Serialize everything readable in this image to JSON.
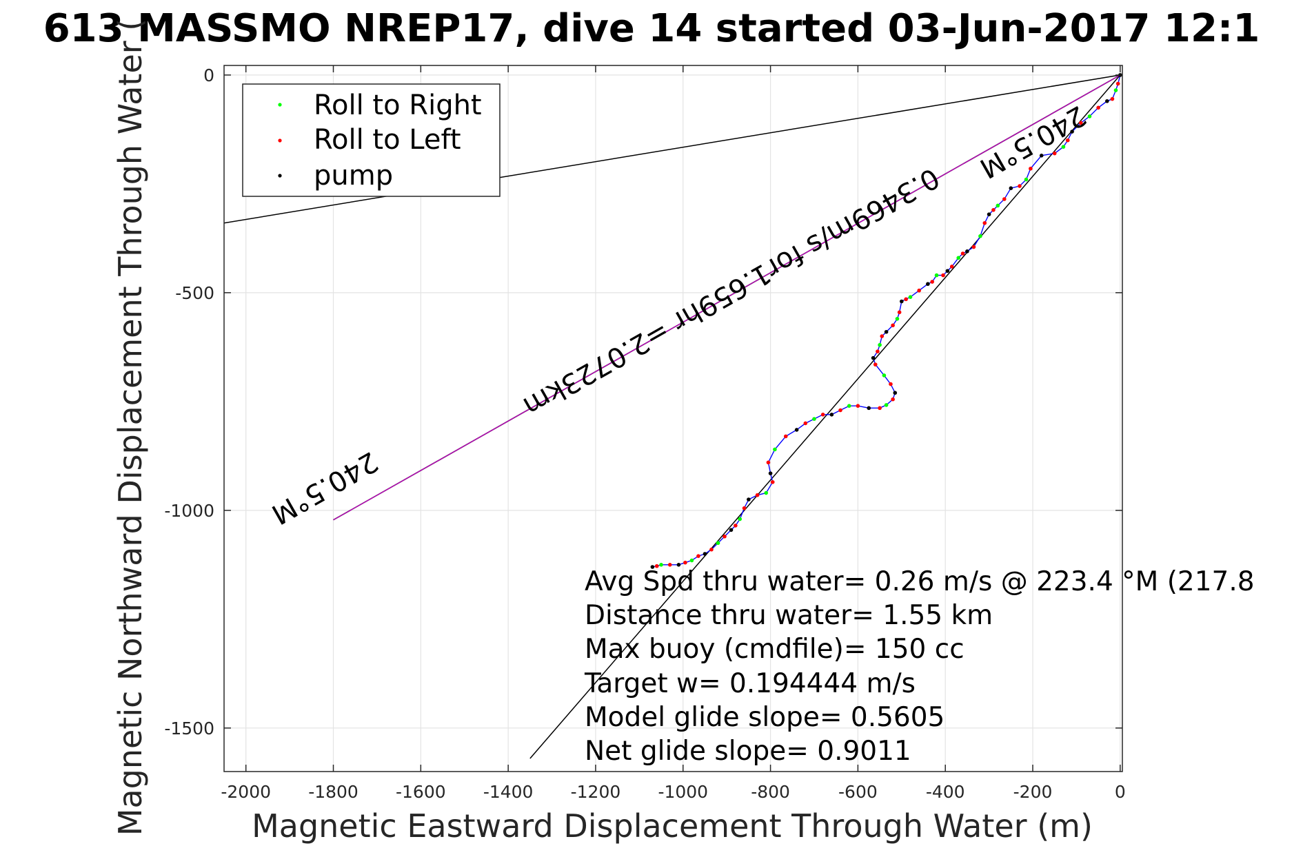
{
  "chart_data": {
    "type": "line",
    "title": "613 MASSMO NREP17, dive 14 started 03-Jun-2017 12:1",
    "xlabel": "Magnetic Eastward Displacement Through Water (m)",
    "ylabel": "Magnetic Northward Displacement Through Water (",
    "xlim": [
      -2050,
      5
    ],
    "ylim": [
      -1600,
      22
    ],
    "xticks": [
      -2000,
      -1800,
      -1600,
      -1400,
      -1200,
      -1000,
      -800,
      -600,
      -400,
      -200,
      0
    ],
    "xtick_labels": [
      "-2000",
      "-1800",
      "-1600",
      "-1400",
      "-1200",
      "-1000",
      "-800",
      "-600",
      "-400",
      "-200",
      "0"
    ],
    "yticks": [
      0,
      -500,
      -1000,
      -1500
    ],
    "ytick_labels": [
      "0",
      "-500",
      "-1000",
      "-1500"
    ],
    "grid": true,
    "legend_position": "top-left",
    "legend": [
      {
        "label": "Roll to Right",
        "color": "#00ff00"
      },
      {
        "label": "Roll to Left",
        "color": "#ff0000"
      },
      {
        "label": "pump",
        "color": "#000000"
      }
    ],
    "colors": {
      "track": "#0000ff",
      "roll_right": "#00ff00",
      "roll_left": "#ff0000",
      "pump": "#000000",
      "heading_line": "#cc00cc",
      "reference_lines": "#000000"
    },
    "track": {
      "x": [
        0,
        -5,
        -10,
        -18,
        -30,
        -50,
        -70,
        -90,
        -110,
        -120,
        -130,
        -150,
        -180,
        -205,
        -215,
        -230,
        -250,
        -265,
        -280,
        -290,
        -300,
        -310,
        -320,
        -335,
        -350,
        -360,
        -370,
        -385,
        -395,
        -405,
        -420,
        -430,
        -440,
        -460,
        -480,
        -490,
        -500,
        -505,
        -510,
        -520,
        -535,
        -545,
        -550,
        -555,
        -565,
        -560,
        -540,
        -525,
        -515,
        -520,
        -535,
        -550,
        -575,
        -600,
        -620,
        -640,
        -660,
        -680,
        -700,
        -720,
        -740,
        -765,
        -790,
        -805,
        -800,
        -795,
        -810,
        -830,
        -850,
        -860,
        -870,
        -880,
        -890,
        -905,
        -920,
        -935,
        -950,
        -965,
        -980,
        -995,
        -1010,
        -1030,
        -1050,
        -1060,
        -1070
      ],
      "y": [
        0,
        -20,
        -35,
        -55,
        -60,
        -75,
        -95,
        -110,
        -130,
        -150,
        -165,
        -180,
        -185,
        -215,
        -240,
        -255,
        -260,
        -285,
        -300,
        -310,
        -320,
        -340,
        -370,
        -395,
        -405,
        -410,
        -420,
        -440,
        -450,
        -460,
        -460,
        -475,
        -480,
        -495,
        -510,
        -515,
        -520,
        -545,
        -560,
        -575,
        -590,
        -600,
        -620,
        -635,
        -650,
        -665,
        -690,
        -710,
        -730,
        -745,
        -758,
        -765,
        -765,
        -760,
        -760,
        -770,
        -780,
        -780,
        -790,
        -800,
        -815,
        -830,
        -860,
        -890,
        -915,
        -935,
        -960,
        -965,
        -975,
        -995,
        -1020,
        -1035,
        -1045,
        -1060,
        -1075,
        -1090,
        -1100,
        -1105,
        -1115,
        -1120,
        -1125,
        -1125,
        -1125,
        -1128,
        -1130
      ]
    },
    "heading_line": {
      "x": [
        0,
        -1800
      ],
      "y": [
        0,
        -1022
      ]
    },
    "reference_line_north": {
      "x": [
        0,
        -2050
      ],
      "y": [
        0,
        -340
      ]
    },
    "reference_line_south": {
      "x": [
        0,
        -1350
      ],
      "y": [
        0,
        -1570
      ]
    },
    "annotations": [
      {
        "text": "240.5°M",
        "x": -1830,
        "y": -930,
        "rotation": 150.4
      },
      {
        "text": "0.3469m/s for1.659hr =2.0723km",
        "x": -900,
        "y": -480,
        "rotation": 150.4
      },
      {
        "text": "240.5°M",
        "x": -210,
        "y": -135,
        "rotation": 150.4
      }
    ],
    "stats": [
      "Avg Spd thru water=  0.26 m/s @ 223.4 °M (217.8",
      "Distance thru water=  1.55 km",
      "Max buoy (cmdfile)= 150 cc",
      "Target w= 0.194444 m/s",
      "Model glide slope= 0.5605",
      "Net glide slope= 0.9011"
    ]
  }
}
